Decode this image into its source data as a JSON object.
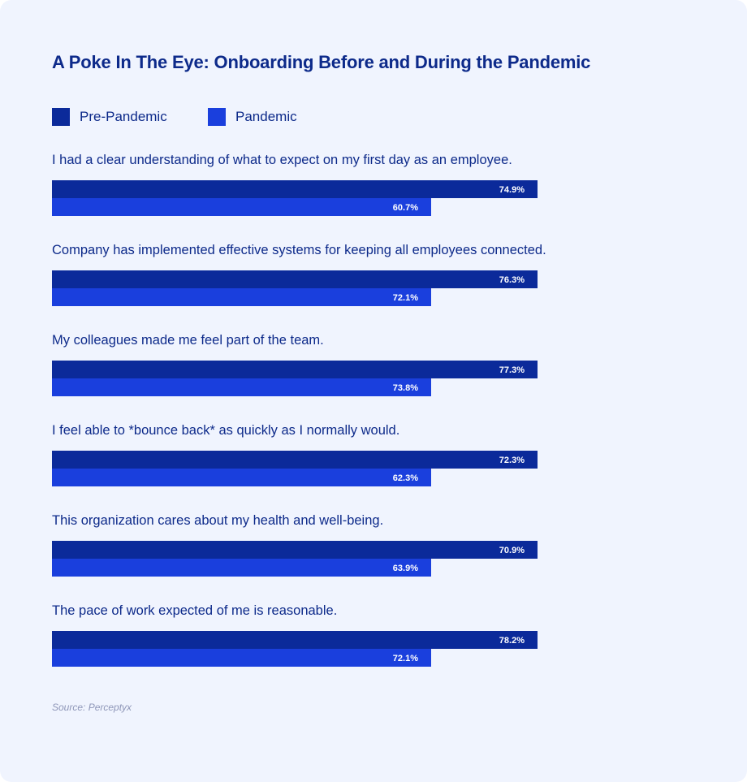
{
  "chart_data": {
    "type": "bar",
    "orientation": "horizontal",
    "title": "A Poke In The Eye: Onboarding Before and During the Pandemic",
    "categories": [
      "I had a clear understanding of what to expect on my first day as an employee.",
      "Company has implemented effective systems for keeping all employees connected.",
      "My colleagues made me feel part of the team.",
      "I feel able to *bounce back* as quickly as I normally would.",
      "This organization cares about my health and well-being.",
      "The pace of work expected of me is reasonable."
    ],
    "series": [
      {
        "name": "Pre-Pandemic",
        "color": "#0b2a9a",
        "values": [
          74.9,
          76.3,
          77.3,
          72.3,
          70.9,
          78.2
        ],
        "labels": [
          "74.9%",
          "76.3%",
          "77.3%",
          "72.3%",
          "70.9%",
          "78.2%"
        ]
      },
      {
        "name": "Pandemic",
        "color": "#1a3fdd",
        "values": [
          60.7,
          72.1,
          73.8,
          62.3,
          63.9,
          72.1
        ],
        "labels": [
          "60.7%",
          "72.1%",
          "73.8%",
          "62.3%",
          "63.9%",
          "72.1%"
        ]
      }
    ],
    "legend_position": "top-left",
    "grid": false,
    "source": "Source: Perceptyx"
  }
}
